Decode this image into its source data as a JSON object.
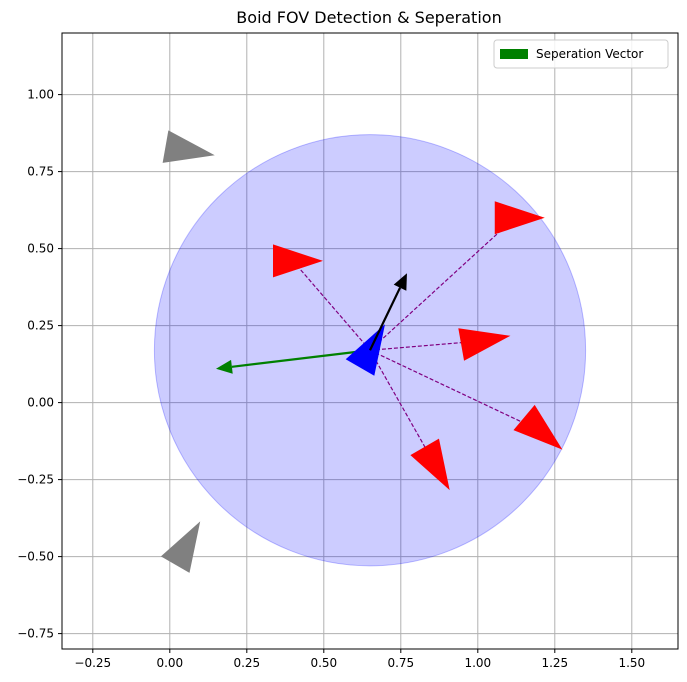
{
  "chart_data": {
    "type": "scatter",
    "title": "Boid FOV Detection & Seperation",
    "xlabel": "",
    "ylabel": "",
    "xlim": [
      -0.35,
      1.65
    ],
    "ylim": [
      -0.8,
      1.2
    ],
    "xticks": [
      -0.25,
      0.0,
      0.25,
      0.5,
      0.75,
      1.0,
      1.25,
      1.5
    ],
    "xtick_labels": [
      "−0.25",
      "0.00",
      "0.25",
      "0.50",
      "0.75",
      "1.00",
      "1.25",
      "1.50"
    ],
    "yticks": [
      -0.75,
      -0.5,
      -0.25,
      0.0,
      0.25,
      0.5,
      0.75,
      1.0
    ],
    "ytick_labels": [
      "−0.75",
      "−0.50",
      "−0.25",
      "0.00",
      "0.25",
      "0.50",
      "0.75",
      "1.00"
    ],
    "grid": true,
    "legend": {
      "position": "top-right",
      "entries": [
        {
          "label": "Seperation Vector",
          "color": "#008000"
        }
      ]
    },
    "fov_circle": {
      "center": [
        0.65,
        0.17
      ],
      "radius": 0.7,
      "color": "#0000ff",
      "alpha": 0.2
    },
    "focal_boid": {
      "x": 0.65,
      "y": 0.17,
      "heading_deg": 60,
      "color": "#0000ff"
    },
    "velocity_arrow": {
      "from": [
        0.65,
        0.17
      ],
      "to": [
        0.77,
        0.42
      ],
      "color": "#000000"
    },
    "separation_vector": {
      "from": [
        0.65,
        0.17
      ],
      "to": [
        0.15,
        0.11
      ],
      "color": "#008000"
    },
    "neighbors": [
      {
        "x": 1.12,
        "y": 0.6,
        "heading_deg": 0,
        "color": "#ff0000"
      },
      {
        "x": 0.4,
        "y": 0.46,
        "heading_deg": 0,
        "color": "#ff0000"
      },
      {
        "x": 1.01,
        "y": 0.2,
        "heading_deg": 10,
        "color": "#ff0000"
      },
      {
        "x": 1.2,
        "y": -0.09,
        "heading_deg": -40,
        "color": "#ff0000"
      },
      {
        "x": 0.86,
        "y": -0.2,
        "heading_deg": -60,
        "color": "#ff0000"
      }
    ],
    "outside_boids": [
      {
        "x": 0.05,
        "y": 0.82,
        "heading_deg": -10,
        "color": "#808080"
      },
      {
        "x": 0.05,
        "y": -0.47,
        "heading_deg": 60,
        "color": "#808080"
      }
    ],
    "connection_color": "#800080"
  }
}
